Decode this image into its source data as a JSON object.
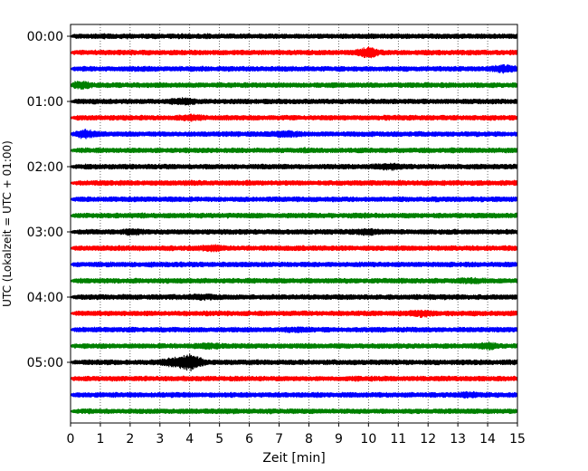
{
  "chart_data": {
    "type": "line",
    "title": "",
    "xlabel": "Zeit  [min]",
    "ylabel": "UTC (Lokalzeit = UTC + 01:00)",
    "xlim": [
      0,
      15
    ],
    "x_ticks": [
      0,
      1,
      2,
      3,
      4,
      5,
      6,
      7,
      8,
      9,
      10,
      11,
      12,
      13,
      14,
      15
    ],
    "grid": "vertical dotted",
    "y_tick_labels": [
      "00:00",
      "01:00",
      "02:00",
      "03:00",
      "04:00",
      "05:00"
    ],
    "trace_colors": [
      "#000000",
      "#ff0000",
      "#0000ff",
      "#008000"
    ],
    "traces": [
      {
        "start": "00:00",
        "color": "#000000",
        "events": []
      },
      {
        "start": "00:15",
        "color": "#ff0000",
        "events": [
          {
            "minute": 10.0,
            "amp": 2.2
          }
        ]
      },
      {
        "start": "00:30",
        "color": "#0000ff",
        "events": [
          {
            "minute": 14.6,
            "amp": 1.8
          }
        ]
      },
      {
        "start": "00:45",
        "color": "#008000",
        "events": [
          {
            "minute": 0.3,
            "amp": 1.8
          }
        ]
      },
      {
        "start": "01:00",
        "color": "#000000",
        "events": [
          {
            "minute": 3.8,
            "amp": 1.6
          }
        ]
      },
      {
        "start": "01:15",
        "color": "#ff0000",
        "events": [
          {
            "minute": 4.1,
            "amp": 1.6
          }
        ]
      },
      {
        "start": "01:30",
        "color": "#0000ff",
        "events": [
          {
            "minute": 0.5,
            "amp": 2.0
          },
          {
            "minute": 7.2,
            "amp": 1.6
          }
        ]
      },
      {
        "start": "01:45",
        "color": "#008000",
        "events": []
      },
      {
        "start": "02:00",
        "color": "#000000",
        "events": [
          {
            "minute": 10.7,
            "amp": 1.6
          }
        ]
      },
      {
        "start": "02:15",
        "color": "#ff0000",
        "events": []
      },
      {
        "start": "02:30",
        "color": "#0000ff",
        "events": []
      },
      {
        "start": "02:45",
        "color": "#008000",
        "events": []
      },
      {
        "start": "03:00",
        "color": "#000000",
        "events": [
          {
            "minute": 2.1,
            "amp": 1.6
          },
          {
            "minute": 10.0,
            "amp": 1.6
          }
        ]
      },
      {
        "start": "03:15",
        "color": "#ff0000",
        "events": [
          {
            "minute": 4.7,
            "amp": 1.6
          }
        ]
      },
      {
        "start": "03:30",
        "color": "#0000ff",
        "events": []
      },
      {
        "start": "03:45",
        "color": "#008000",
        "events": [
          {
            "minute": 13.5,
            "amp": 1.5
          }
        ]
      },
      {
        "start": "04:00",
        "color": "#000000",
        "events": [
          {
            "minute": 4.4,
            "amp": 1.5
          }
        ]
      },
      {
        "start": "04:15",
        "color": "#ff0000",
        "events": [
          {
            "minute": 11.8,
            "amp": 1.6
          }
        ]
      },
      {
        "start": "04:30",
        "color": "#0000ff",
        "events": [
          {
            "minute": 7.6,
            "amp": 1.4
          }
        ]
      },
      {
        "start": "04:45",
        "color": "#008000",
        "events": [
          {
            "minute": 4.7,
            "amp": 1.6
          },
          {
            "minute": 14.0,
            "amp": 1.6
          }
        ]
      },
      {
        "start": "05:00",
        "color": "#000000",
        "events": [
          {
            "minute": 4.0,
            "amp": 3.6
          },
          {
            "minute": 3.3,
            "amp": 1.8
          }
        ]
      },
      {
        "start": "05:15",
        "color": "#ff0000",
        "events": []
      },
      {
        "start": "05:30",
        "color": "#0000ff",
        "events": [
          {
            "minute": 13.4,
            "amp": 1.6
          }
        ]
      },
      {
        "start": "05:45",
        "color": "#008000",
        "events": []
      }
    ]
  }
}
